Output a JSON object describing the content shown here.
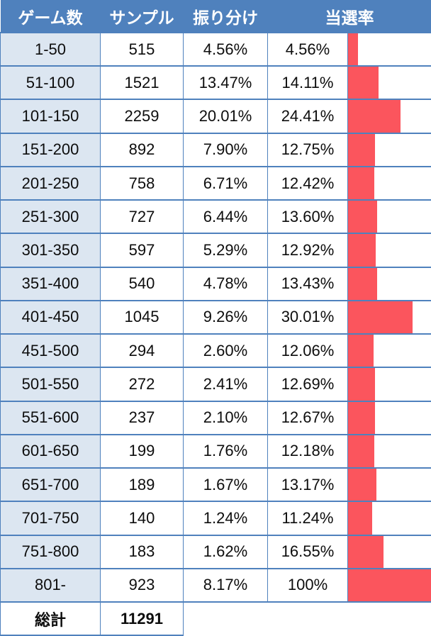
{
  "colors": {
    "header_bg": "#4f81bd",
    "header_text": "#ffffff",
    "border": "#4f81bd",
    "first_col_bg": "#dce6f1",
    "bar_fill": "#fb555d",
    "cell_bg": "#ffffff",
    "text": "#0d0d0d"
  },
  "table": {
    "headers": {
      "games": "ゲーム数",
      "sample": "サンプル",
      "distribution": "振り分け",
      "win_rate": "当選率"
    },
    "rows": [
      {
        "range": "1-50",
        "sample": "515",
        "distribution": "4.56%",
        "win_rate": "4.56%",
        "win_rate_value": 4.56
      },
      {
        "range": "51-100",
        "sample": "1521",
        "distribution": "13.47%",
        "win_rate": "14.11%",
        "win_rate_value": 14.11
      },
      {
        "range": "101-150",
        "sample": "2259",
        "distribution": "20.01%",
        "win_rate": "24.41%",
        "win_rate_value": 24.41
      },
      {
        "range": "151-200",
        "sample": "892",
        "distribution": "7.90%",
        "win_rate": "12.75%",
        "win_rate_value": 12.75
      },
      {
        "range": "201-250",
        "sample": "758",
        "distribution": "6.71%",
        "win_rate": "12.42%",
        "win_rate_value": 12.42
      },
      {
        "range": "251-300",
        "sample": "727",
        "distribution": "6.44%",
        "win_rate": "13.60%",
        "win_rate_value": 13.6
      },
      {
        "range": "301-350",
        "sample": "597",
        "distribution": "5.29%",
        "win_rate": "12.92%",
        "win_rate_value": 12.92
      },
      {
        "range": "351-400",
        "sample": "540",
        "distribution": "4.78%",
        "win_rate": "13.43%",
        "win_rate_value": 13.43
      },
      {
        "range": "401-450",
        "sample": "1045",
        "distribution": "9.26%",
        "win_rate": "30.01%",
        "win_rate_value": 30.01
      },
      {
        "range": "451-500",
        "sample": "294",
        "distribution": "2.60%",
        "win_rate": "12.06%",
        "win_rate_value": 12.06
      },
      {
        "range": "501-550",
        "sample": "272",
        "distribution": "2.41%",
        "win_rate": "12.69%",
        "win_rate_value": 12.69
      },
      {
        "range": "551-600",
        "sample": "237",
        "distribution": "2.10%",
        "win_rate": "12.67%",
        "win_rate_value": 12.67
      },
      {
        "range": "601-650",
        "sample": "199",
        "distribution": "1.76%",
        "win_rate": "12.18%",
        "win_rate_value": 12.18
      },
      {
        "range": "651-700",
        "sample": "189",
        "distribution": "1.67%",
        "win_rate": "13.17%",
        "win_rate_value": 13.17
      },
      {
        "range": "701-750",
        "sample": "140",
        "distribution": "1.24%",
        "win_rate": "11.24%",
        "win_rate_value": 11.24
      },
      {
        "range": "751-800",
        "sample": "183",
        "distribution": "1.62%",
        "win_rate": "16.55%",
        "win_rate_value": 16.55
      },
      {
        "range": "801-",
        "sample": "923",
        "distribution": "8.17%",
        "win_rate": "100%",
        "win_rate_value": 100
      }
    ],
    "total": {
      "label": "総計",
      "sample": "11291"
    }
  },
  "chart_data": {
    "type": "table",
    "title": "当選率",
    "columns": [
      "ゲーム数",
      "サンプル",
      "振り分け",
      "当選率"
    ],
    "categories": [
      "1-50",
      "51-100",
      "101-150",
      "151-200",
      "201-250",
      "251-300",
      "301-350",
      "351-400",
      "401-450",
      "451-500",
      "501-550",
      "551-600",
      "601-650",
      "651-700",
      "701-750",
      "751-800",
      "801-"
    ],
    "series": [
      {
        "name": "サンプル",
        "values": [
          515,
          1521,
          2259,
          892,
          758,
          727,
          597,
          540,
          1045,
          294,
          272,
          237,
          199,
          189,
          140,
          183,
          923
        ]
      },
      {
        "name": "振り分け(%)",
        "values": [
          4.56,
          13.47,
          20.01,
          7.9,
          6.71,
          6.44,
          5.29,
          4.78,
          9.26,
          2.6,
          2.41,
          2.1,
          1.76,
          1.67,
          1.24,
          1.62,
          8.17
        ]
      },
      {
        "name": "当選率(%)",
        "values": [
          4.56,
          14.11,
          24.41,
          12.75,
          12.42,
          13.6,
          12.92,
          13.43,
          30.01,
          12.06,
          12.69,
          12.67,
          12.18,
          13.17,
          11.24,
          16.55,
          100
        ]
      }
    ],
    "bars": {
      "column": "当選率",
      "color": "#fb555d",
      "pct_width_per_value": 2.58,
      "max_pct": 100
    },
    "total_sample": 11291,
    "legend_position": "none",
    "grid": false
  }
}
